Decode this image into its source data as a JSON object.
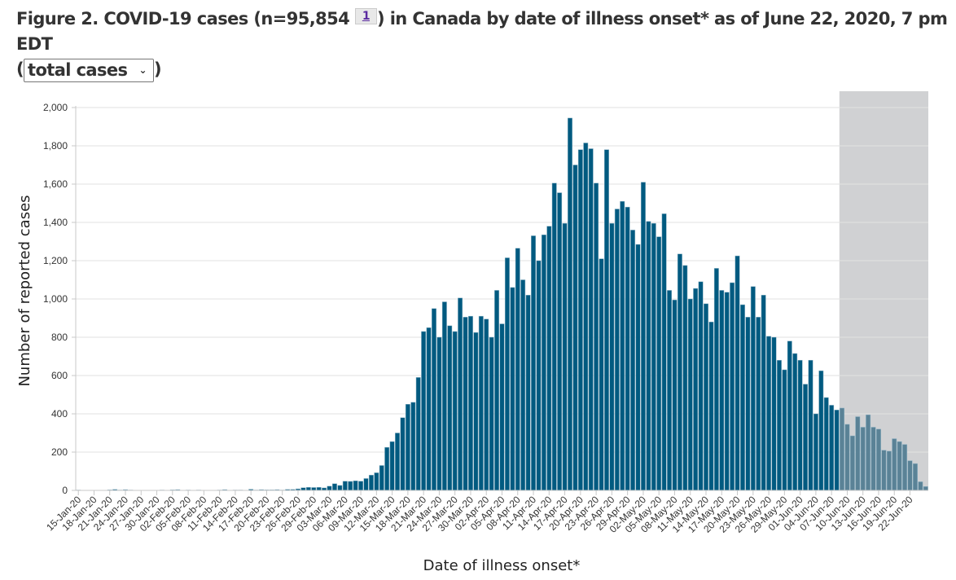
{
  "header": {
    "title_prefix": "Figure 2. COVID-19 cases (n=95,854 ",
    "footnote_link": "1",
    "title_suffix": ") in Canada by date of illness onset* as of June 22, 2020, 7 pm EDT",
    "open_paren": "(",
    "close_paren": ")",
    "select_value": "total cases",
    "select_icon": "chevron-down-icon"
  },
  "colors": {
    "bar": "#005A80",
    "bar_shaded": "#5A8296",
    "shade": "#D0D1D3",
    "grid": "#E2E2E2",
    "axis": "#C8C8C8"
  },
  "chart_data": {
    "type": "bar",
    "title": "Figure 2. COVID-19 cases (n=95,854) in Canada by date of illness onset* as of June 22, 2020, 7 pm EDT",
    "xlabel": "Date of illness onset*",
    "ylabel": "Number of reported cases",
    "ylim": [
      0,
      2000
    ],
    "yticks": [
      0,
      200,
      400,
      600,
      800,
      1000,
      1200,
      1400,
      1600,
      1800,
      2000
    ],
    "ytick_labels": [
      "0",
      "200",
      "400",
      "600",
      "800",
      "1,000",
      "1,200",
      "1,400",
      "1,600",
      "1,800",
      "2,000"
    ],
    "grid": true,
    "start_date": "15-Jan-20",
    "end_date": "22-Jun-20",
    "xtick_labels": [
      "15-Jan-20",
      "18-Jan-20",
      "21-Jan-20",
      "24-Jan-20",
      "27-Jan-20",
      "30-Jan-20",
      "02-Feb-20",
      "05-Feb-20",
      "08-Feb-20",
      "11-Feb-20",
      "14-Feb-20",
      "17-Feb-20",
      "20-Feb-20",
      "23-Feb-20",
      "26-Feb-20",
      "29-Feb-20",
      "03-Mar-20",
      "06-Mar-20",
      "09-Mar-20",
      "12-Mar-20",
      "15-Mar-20",
      "18-Mar-20",
      "21-Mar-20",
      "24-Mar-20",
      "27-Mar-20",
      "30-Mar-20",
      "02-Apr-20",
      "05-Apr-20",
      "08-Apr-20",
      "11-Apr-20",
      "14-Apr-20",
      "17-Apr-20",
      "20-Apr-20",
      "23-Apr-20",
      "26-Apr-20",
      "29-Apr-20",
      "02-May-20",
      "05-May-20",
      "08-May-20",
      "11-May-20",
      "14-May-20",
      "17-May-20",
      "20-May-20",
      "23-May-20",
      "26-May-20",
      "29-May-20",
      "01-Jun-20",
      "04-Jun-20",
      "07-Jun-20",
      "10-Jun-20",
      "13-Jun-20",
      "16-Jun-20",
      "19-Jun-20",
      "22-Jun-20"
    ],
    "shaded_region": {
      "from": "09-Jun-20",
      "to": "22-Jun-20",
      "note": "grey band indicating recent period"
    },
    "values": [
      2,
      1,
      0,
      1,
      1,
      1,
      3,
      5,
      2,
      4,
      2,
      1,
      1,
      1,
      1,
      0,
      2,
      1,
      3,
      4,
      1,
      2,
      1,
      2,
      1,
      1,
      0,
      2,
      4,
      1,
      2,
      2,
      1,
      6,
      2,
      4,
      3,
      3,
      4,
      2,
      5,
      5,
      8,
      14,
      16,
      15,
      16,
      13,
      22,
      35,
      26,
      48,
      47,
      50,
      48,
      62,
      80,
      92,
      130,
      225,
      255,
      300,
      380,
      450,
      460,
      590,
      830,
      850,
      950,
      800,
      985,
      860,
      830,
      1005,
      905,
      910,
      825,
      910,
      895,
      800,
      1045,
      870,
      1215,
      1060,
      1265,
      1100,
      1020,
      1330,
      1200,
      1335,
      1380,
      1605,
      1555,
      1395,
      1945,
      1700,
      1780,
      1815,
      1785,
      1605,
      1210,
      1780,
      1395,
      1470,
      1510,
      1480,
      1360,
      1285,
      1610,
      1405,
      1395,
      1325,
      1445,
      1045,
      995,
      1235,
      1175,
      1000,
      1055,
      1090,
      975,
      880,
      1160,
      1045,
      1035,
      1085,
      1225,
      970,
      905,
      1065,
      905,
      1020,
      805,
      800,
      680,
      630,
      780,
      715,
      680,
      555,
      680,
      400,
      625,
      485,
      445,
      420,
      430,
      345,
      285,
      385,
      330,
      395,
      330,
      320,
      210,
      205,
      270,
      255,
      240,
      155,
      140,
      45,
      20
    ],
    "n_total": "95,854"
  }
}
